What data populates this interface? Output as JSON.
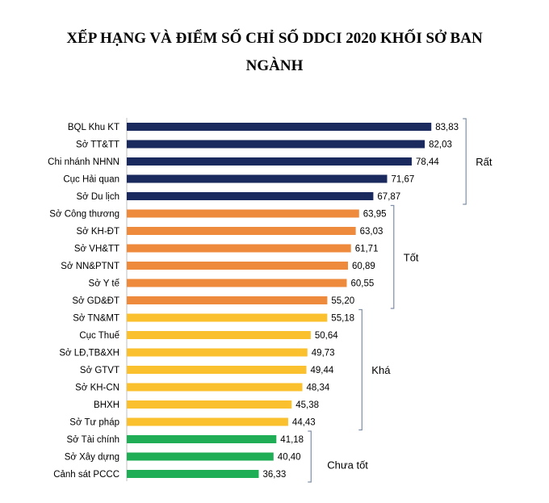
{
  "chart_data": {
    "type": "bar",
    "orientation": "horizontal",
    "title_line1": "XẾP HẠNG VÀ ĐIỂM SỐ CHỈ SỐ DDCI 2020 KHỐI SỞ BAN",
    "title_line2": "NGÀNH",
    "xlim": [
      0,
      90
    ],
    "grid": false,
    "categories": [
      "BQL Khu KT",
      "Sở TT&TT",
      "Chi nhánh NHNN",
      "Cục Hải quan",
      "Sở Du lịch",
      "Sở Công thương",
      "Sở KH-ĐT",
      "Sở VH&TT",
      "Sở NN&PTNT",
      "Sở Y tế",
      "Sở GD&ĐT",
      "Sở TN&MT",
      "Cục Thuế",
      "Sở LĐ,TB&XH",
      "Sở GTVT",
      "Sở KH-CN",
      "BHXH",
      "Sở Tư pháp",
      "Sở Tài chính",
      "Sở Xây dựng",
      "Cảnh sát PCCC"
    ],
    "values": [
      83.83,
      82.03,
      78.44,
      71.67,
      67.87,
      63.95,
      63.03,
      61.71,
      60.89,
      60.55,
      55.2,
      55.18,
      50.64,
      49.73,
      49.44,
      48.34,
      45.38,
      44.43,
      41.18,
      40.4,
      36.33
    ],
    "value_labels": [
      "83,83",
      "82,03",
      "78,44",
      "71,67",
      "67,87",
      "63,95",
      "63,03",
      "61,71",
      "60,89",
      "60,55",
      "55,20",
      "55,18",
      "50,64",
      "49,73",
      "49,44",
      "48,34",
      "45,38",
      "44,43",
      "41,18",
      "40,40",
      "36,33"
    ],
    "groups": [
      {
        "label": "Rất",
        "start": 0,
        "end": 4,
        "color": "#1b2a5e"
      },
      {
        "label": "Tốt",
        "start": 5,
        "end": 10,
        "color": "#ee8a3c"
      },
      {
        "label": "Khá",
        "start": 11,
        "end": 17,
        "color": "#fbc02d"
      },
      {
        "label": "Chưa tốt",
        "start": 18,
        "end": 20,
        "color": "#1fad56"
      }
    ]
  }
}
